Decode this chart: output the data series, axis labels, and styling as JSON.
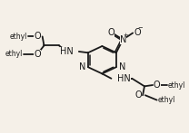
{
  "bg_color": "#f5f0e8",
  "line_color": "#1a1a1a",
  "line_width": 1.3,
  "font_size": 7.0,
  "xlim": [
    -0.05,
    1.05
  ],
  "ylim": [
    -0.05,
    1.05
  ]
}
